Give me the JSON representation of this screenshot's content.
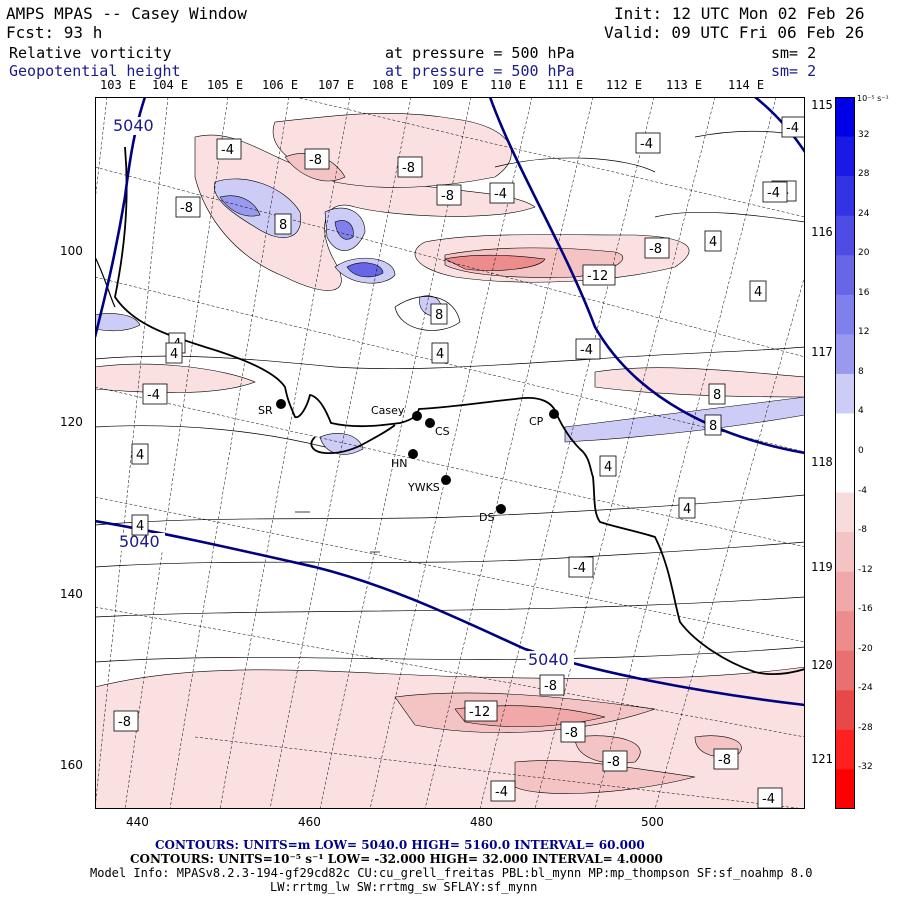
{
  "header": {
    "model": "AMPS MPAS -- Casey Window",
    "init": "Init: 12 UTC Mon 02 Feb 26",
    "fcst": "Fcst:   93 h",
    "valid": "Valid: 09 UTC Fri 06 Feb 26",
    "field1": "Relative vorticity",
    "field1_level": "at pressure =  500 hPa",
    "field1_sm": "sm= 2",
    "field2": "Geopotential height",
    "field2_level": "at pressure =  500 hPa",
    "field2_sm": "sm= 2"
  },
  "lon_top": [
    "103 E",
    "104 E",
    "105 E",
    "106 E",
    "107 E",
    "108 E",
    "109 E",
    "110 E",
    "111 E",
    "112 E",
    "113 E",
    "114 E"
  ],
  "lon_right": [
    "115 E",
    "116 E",
    "117 E",
    "118 E",
    "119 E",
    "120 E",
    "121 E"
  ],
  "y_ticks": [
    "100",
    "120",
    "140",
    "160"
  ],
  "x_ticks": [
    "440",
    "460",
    "480",
    "500"
  ],
  "stations": [
    {
      "name": "SR"
    },
    {
      "name": "Casey"
    },
    {
      "name": "CS"
    },
    {
      "name": "CP"
    },
    {
      "name": "HN"
    },
    {
      "name": "YWKS"
    },
    {
      "name": "DS"
    }
  ],
  "height_labels": [
    "5040",
    "5040",
    "5040"
  ],
  "vort_labels": [
    "-4",
    "-8",
    "-8",
    "-8",
    "-4",
    "-4",
    "-8",
    "8",
    "-4",
    "-4",
    "4",
    "-8",
    "-12",
    "4",
    "8",
    "4",
    "4",
    "4",
    "-4",
    "4",
    "8",
    "8",
    "4",
    "4",
    "4",
    "-4",
    "-4",
    "-8",
    "-8",
    "-12",
    "-8",
    "-8",
    "-8",
    "-4",
    "-4",
    "-4"
  ],
  "colorbar": {
    "unit": "10⁻⁵ s⁻¹",
    "labels": [
      "32",
      "28",
      "24",
      "20",
      "16",
      "12",
      "8",
      "4",
      "0",
      "-4",
      "-8",
      "-12",
      "-16",
      "-20",
      "-24",
      "-28",
      "-32"
    ],
    "colors": [
      "#0000e6",
      "#1a1ae6",
      "#3333e6",
      "#4d4de6",
      "#6666e6",
      "#8080ec",
      "#9999f0",
      "#ccccf6",
      "#ffffff",
      "#ffffff",
      "#f8dcdc",
      "#f4c4c4",
      "#f0a8a8",
      "#ec8c8c",
      "#e87070",
      "#e84848",
      "#ff2020",
      "#ff0000"
    ]
  },
  "footer": {
    "line1": "CONTOURS:  UNITS=m  LOW=  5040.0          HIGH=  5160.0          INTERVAL=   60.000",
    "line2": "CONTOURS:  UNITS=10⁻⁵ s⁻¹  LOW= -32.000          HIGH=  32.000          INTERVAL=   4.0000",
    "line3": "Model Info: MPASv8.2.3-194-gf29cd82c CU:cu_grell_freitas PBL:bl_mynn MP:mp_thompson SF:sf_noahmp 8.0",
    "line4": "LW:rrtmg_lw SW:rrtmg_sw SFLAY:sf_mynn"
  }
}
